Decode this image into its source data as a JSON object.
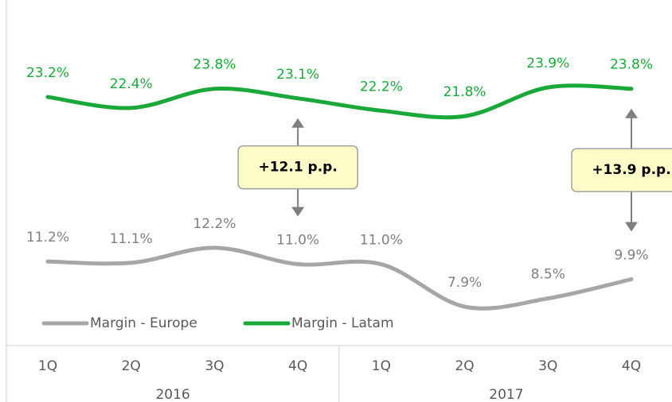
{
  "chart_data": {
    "type": "line",
    "categories": [
      "1Q",
      "2Q",
      "3Q",
      "4Q",
      "1Q",
      "2Q",
      "3Q",
      "4Q"
    ],
    "category_groups": [
      "2016",
      "2017"
    ],
    "series": [
      {
        "name": "Margin - Europe",
        "color": "#a6a6a6",
        "label_color": "#7f7f7f",
        "values": [
          11.2,
          11.1,
          12.2,
          11.0,
          11.0,
          7.9,
          8.5,
          9.9
        ],
        "value_labels": [
          "11.2%",
          "11.1%",
          "12.2%",
          "11.0%",
          "11.0%",
          "7.9%",
          "8.5%",
          "9.9%"
        ]
      },
      {
        "name": "Margin - Latam",
        "color": "#1aa83a",
        "label_color": "#1aa83a",
        "values": [
          23.2,
          22.4,
          23.8,
          23.1,
          22.2,
          21.8,
          23.9,
          23.8
        ],
        "value_labels": [
          "23.2%",
          "22.4%",
          "23.8%",
          "23.1%",
          "22.2%",
          "21.8%",
          "23.9%",
          "23.8%"
        ]
      }
    ],
    "annotations": [
      {
        "text": "+12.1 p.p.",
        "category": 3
      },
      {
        "text": "+13.9 p.p.",
        "category": 7
      }
    ]
  }
}
